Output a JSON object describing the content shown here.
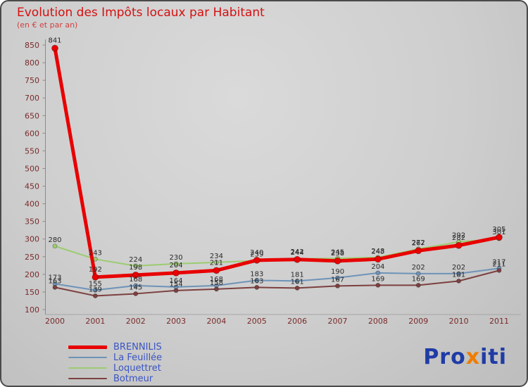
{
  "header": {
    "title": "Evolution des Impôts locaux par Habitant",
    "subtitle": "(en € et par an)"
  },
  "chart_data": {
    "type": "line",
    "x": [
      "2000",
      "2001",
      "2002",
      "2003",
      "2004",
      "2005",
      "2006",
      "2007",
      "2008",
      "2009",
      "2010",
      "2011"
    ],
    "series": [
      {
        "name": "BRENNILIS",
        "color": "#e80000",
        "line_width": 5,
        "values": [
          841,
          192,
          198,
          204,
          211,
          240,
          242,
          238,
          243,
          267,
          282,
          305
        ]
      },
      {
        "name": "La Feuillée",
        "color": "#6e93b8",
        "line_width": 2,
        "values": [
          173,
          155,
          168,
          164,
          168,
          183,
          181,
          190,
          204,
          202,
          202,
          217
        ]
      },
      {
        "name": "Loquettret",
        "color": "#9ccc70",
        "line_width": 2,
        "values": [
          280,
          243,
          224,
          230,
          234,
          239,
          244,
          245,
          248,
          272,
          292,
          301
        ]
      },
      {
        "name": "Botmeur",
        "color": "#7d4040",
        "line_width": 2,
        "values": [
          163,
          139,
          145,
          154,
          158,
          163,
          161,
          167,
          169,
          169,
          181,
          211
        ]
      }
    ],
    "ylim": [
      100,
      850
    ],
    "yticks": [
      100,
      150,
      200,
      250,
      300,
      350,
      400,
      450,
      500,
      550,
      600,
      650,
      700,
      750,
      800,
      850
    ],
    "grid": false,
    "point_labels_visible": true,
    "legend_position": "bottom-left",
    "axis_color": "#7b2a2a",
    "label_color": "#2a2a2a"
  },
  "logo": {
    "text": "Proxiti",
    "parts": [
      {
        "text": "Pro",
        "color": "#1f3ca6"
      },
      {
        "text": "x",
        "color": "#ef7d00"
      },
      {
        "text": "iti",
        "color": "#1f3ca6"
      }
    ]
  }
}
